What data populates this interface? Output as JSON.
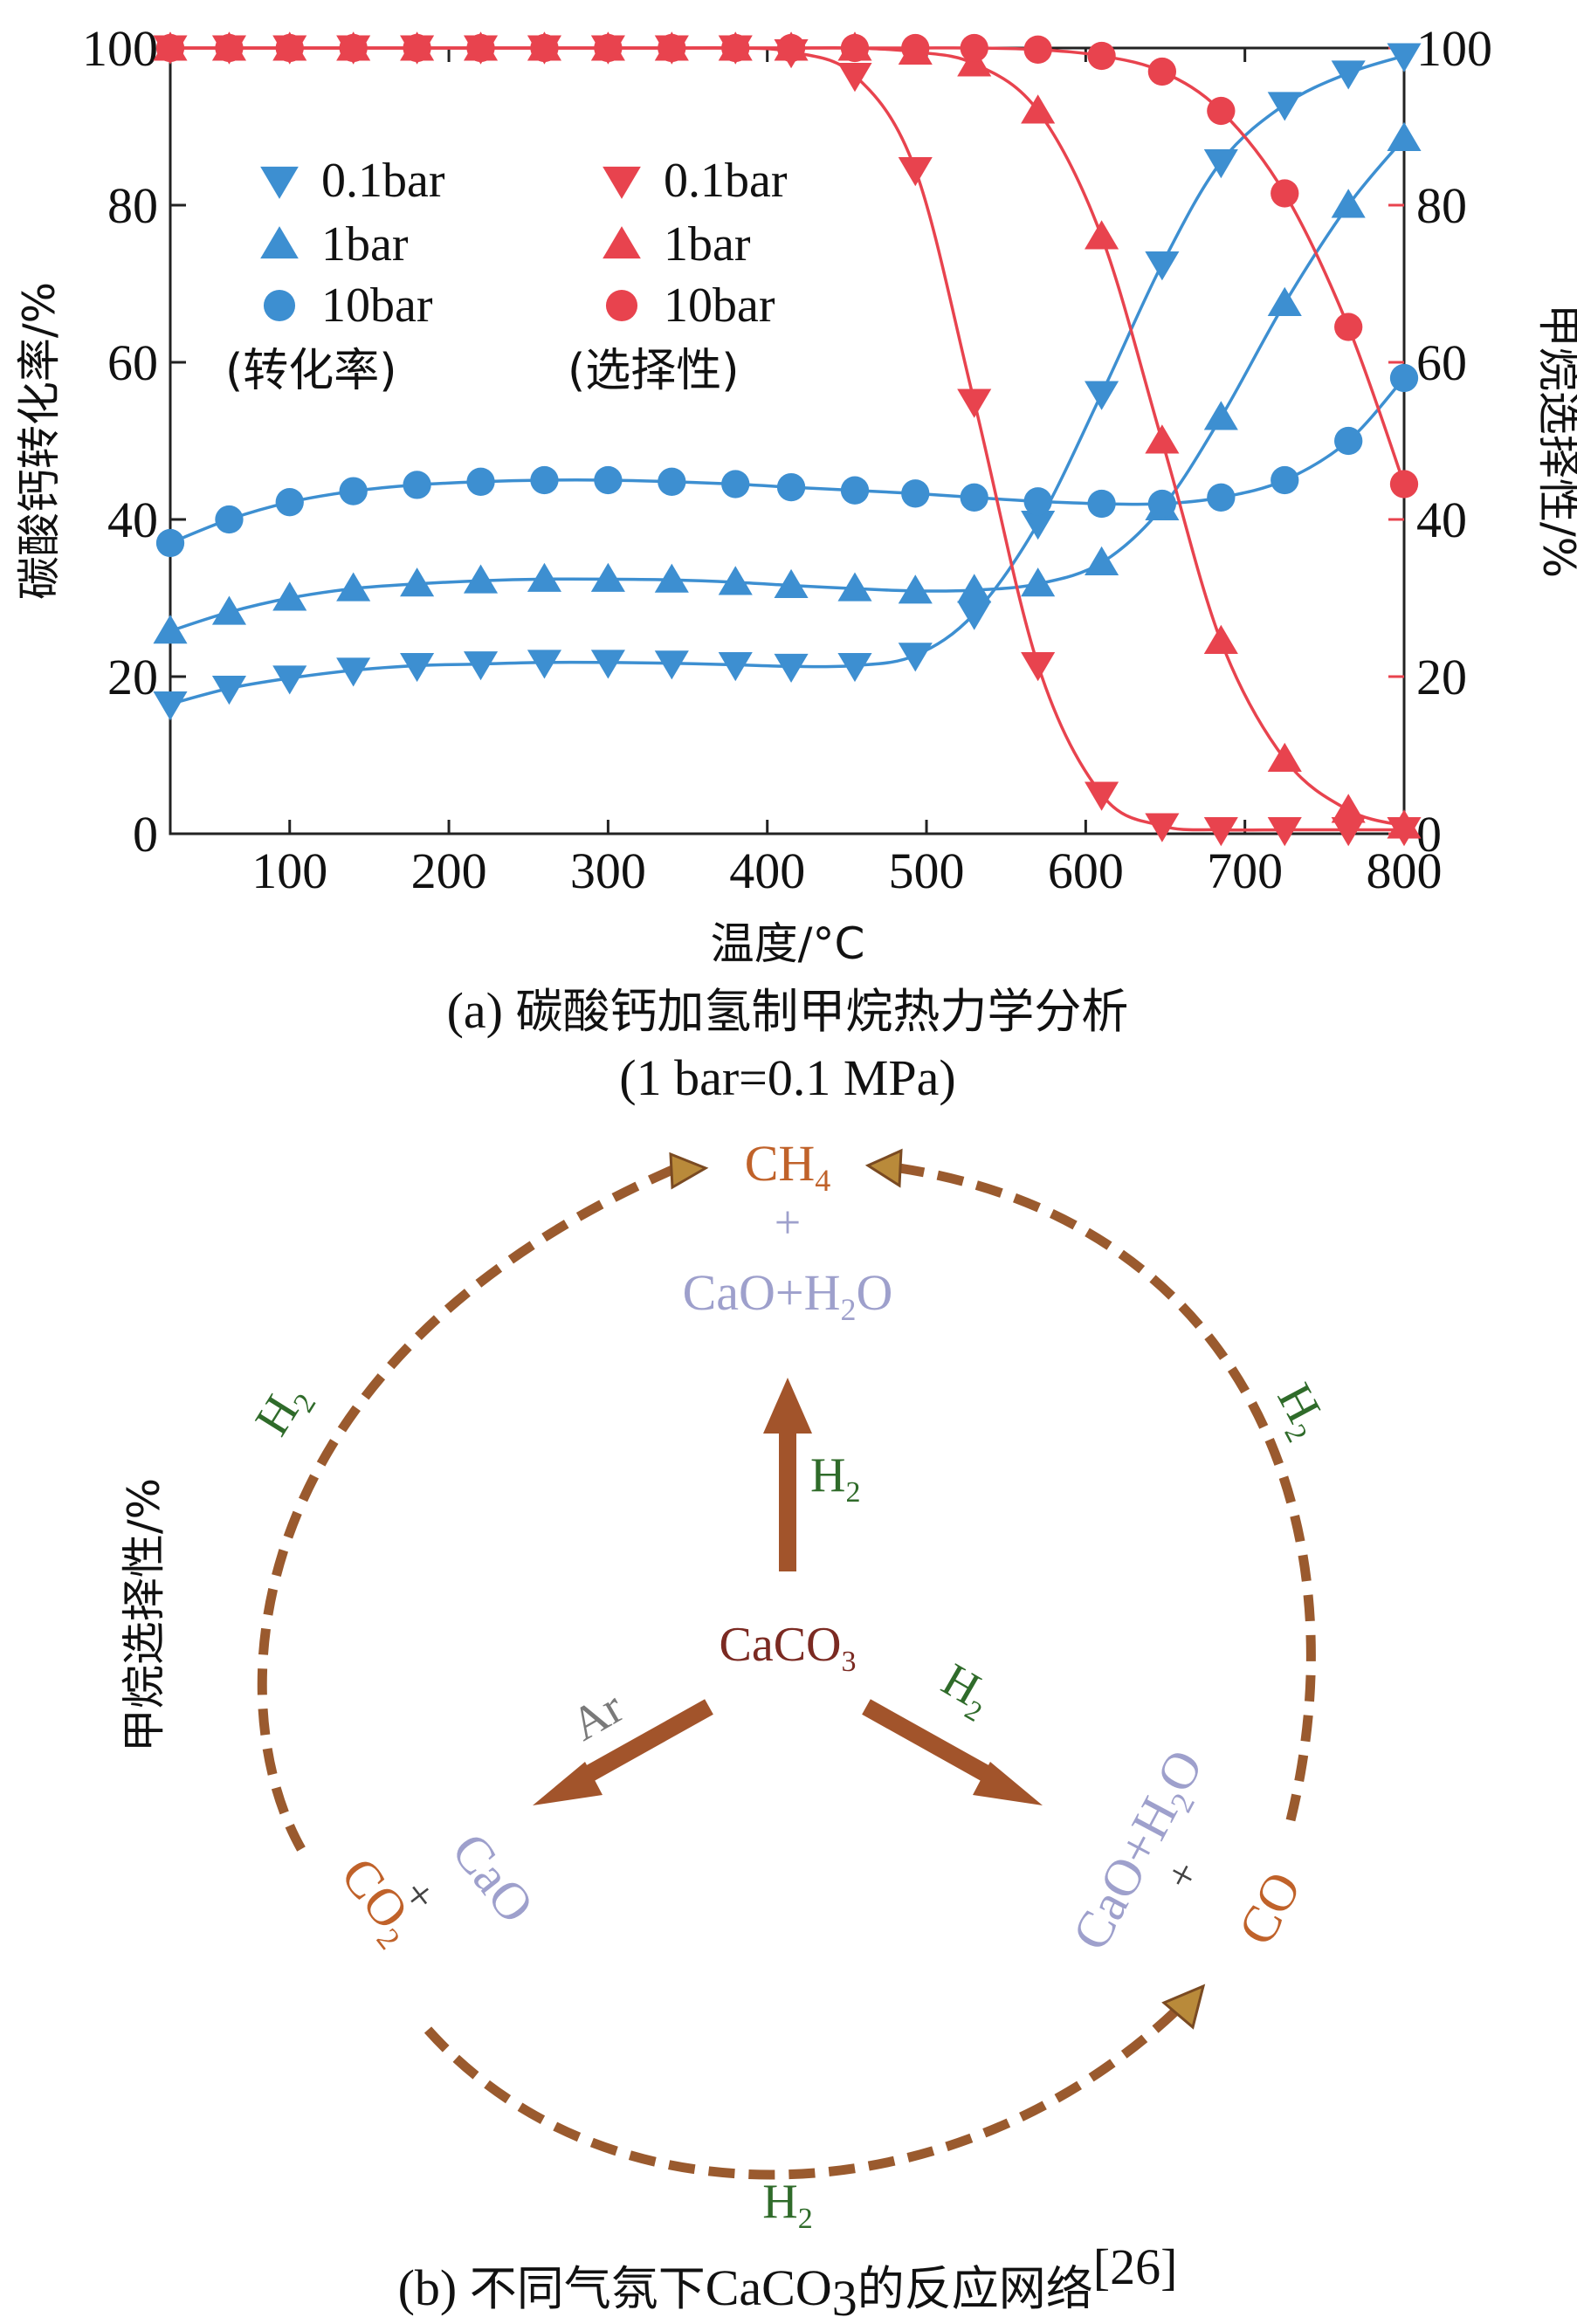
{
  "chart_data": {
    "type": "line",
    "xlabel": "温度/°C",
    "ylabel_left": "碳酸钙转化率/%",
    "ylabel_right": "甲烷选择性/%",
    "xlim": [
      25,
      800
    ],
    "ylim": [
      0,
      100
    ],
    "x_ticks": [
      100,
      200,
      300,
      400,
      500,
      600,
      700,
      800
    ],
    "y_ticks": [
      0,
      20,
      40,
      60,
      80,
      100
    ],
    "x": [
      25,
      62,
      100,
      140,
      180,
      220,
      260,
      300,
      340,
      380,
      415,
      455,
      493,
      530,
      570,
      610,
      648,
      685,
      725,
      765,
      800
    ],
    "legend_groups": [
      {
        "label": "(转化率)",
        "items": [
          "0.1bar",
          "1bar",
          "10bar"
        ]
      },
      {
        "label": "(选择性)",
        "items": [
          "0.1bar",
          "1bar",
          "10bar"
        ]
      }
    ],
    "series": [
      {
        "name": "0.1bar",
        "group": "转化率",
        "axis": "left",
        "marker": "triangle-down",
        "color": "#3d8fd1",
        "values": [
          16.5,
          18.5,
          19.8,
          20.8,
          21.4,
          21.6,
          21.8,
          21.8,
          21.7,
          21.5,
          21.3,
          21.4,
          22.7,
          28.0,
          39.5,
          56.0,
          72.5,
          85.5,
          92.8,
          96.8,
          99.0
        ]
      },
      {
        "name": "1bar",
        "group": "转化率",
        "axis": "left",
        "marker": "triangle-up",
        "color": "#3d8fd1",
        "values": [
          25.8,
          28.2,
          30.0,
          31.2,
          31.8,
          32.2,
          32.4,
          32.4,
          32.3,
          32.0,
          31.6,
          31.2,
          30.9,
          31.0,
          31.8,
          34.5,
          41.5,
          53.0,
          67.5,
          80.0,
          88.5
        ]
      },
      {
        "name": "10bar",
        "group": "转化率",
        "axis": "left",
        "marker": "circle",
        "color": "#3d8fd1",
        "values": [
          37.0,
          40.0,
          42.2,
          43.6,
          44.4,
          44.8,
          45.0,
          45.0,
          44.8,
          44.5,
          44.1,
          43.7,
          43.3,
          42.8,
          42.3,
          42.0,
          42.0,
          42.8,
          45.0,
          50.0,
          58.0
        ]
      },
      {
        "name": "0.1bar",
        "group": "选择性",
        "axis": "right",
        "marker": "triangle-down",
        "color": "#e8434e",
        "values": [
          100,
          100,
          100,
          100,
          100,
          100,
          100,
          100,
          100,
          100,
          99.5,
          96.5,
          84.5,
          55.0,
          21.5,
          5.0,
          1.0,
          0.5,
          0.5,
          0.5,
          0.5
        ]
      },
      {
        "name": "1bar",
        "group": "选择性",
        "axis": "right",
        "marker": "triangle-up",
        "color": "#e8434e",
        "values": [
          100,
          100,
          100,
          100,
          100,
          100,
          100,
          100,
          100,
          100,
          100,
          100,
          99.5,
          98.0,
          92.0,
          76.0,
          50.0,
          24.5,
          9.5,
          3.0,
          1.0
        ]
      },
      {
        "name": "10bar",
        "group": "选择性",
        "axis": "right",
        "marker": "circle",
        "color": "#e8434e",
        "values": [
          100,
          100,
          100,
          100,
          100,
          100,
          100,
          100,
          100,
          100,
          100,
          100,
          100,
          100,
          99.8,
          99.0,
          97.0,
          92.0,
          81.5,
          64.5,
          44.5
        ]
      }
    ]
  },
  "caption_a": {
    "line1_prefix": "(a) ",
    "line1_text": "碳酸钙加氢制甲烷热力学分析",
    "line2": "(1 bar=0.1 MPa)"
  },
  "diagram": {
    "center": "CaCO",
    "center_sub": "3",
    "top_product_line1": "CH",
    "top_product_line1_sub": "4",
    "top_plus": "+",
    "top_product_line2_a": "CaO+H",
    "top_product_line2_sub": "2",
    "top_product_line2_b": "O",
    "arrow_up_label": "H",
    "arrow_up_label_sub": "2",
    "arrow_left_label": "Ar",
    "arrow_right_label": "H",
    "arrow_right_label_sub": "2",
    "left_product_a": "CaO",
    "left_plus": "+",
    "left_product_b": "CO",
    "left_product_b_sub": "2",
    "right_product_a1": "CaO+H",
    "right_product_a_sub": "2",
    "right_product_a2": "O",
    "right_plus": "+",
    "right_product_b": "CO",
    "arc_left_label": "H",
    "arc_left_label_sub": "2",
    "arc_right_label": "H",
    "arc_right_label_sub": "2",
    "arc_bottom_label": "H",
    "arc_bottom_label_sub": "2",
    "side_label": "甲烷选择性/%"
  },
  "caption_b": {
    "prefix": "(b) ",
    "text1": "不同气氛下",
    "formula": "CaCO",
    "formula_sub": "3",
    "text2": "的反应网络",
    "ref": "[26]"
  },
  "colors": {
    "blue": "#3d8fd1",
    "red": "#e8434e",
    "brown_arrow": "#a2542b",
    "dashed_arc": "#9a5a2e",
    "arrowhead_fill": "#b98a3a",
    "calcium_text": "#7b2a22",
    "gas_text": "#2f6b2a",
    "cao_text": "#9ea0cc",
    "product_orange": "#c0622a"
  }
}
